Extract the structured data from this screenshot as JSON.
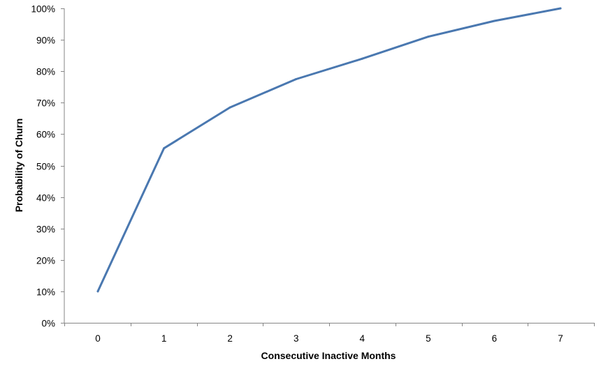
{
  "chart_data": {
    "type": "line",
    "title": "",
    "xlabel": "Consecutive Inactive Months",
    "ylabel": "Probability of Churn",
    "x": [
      0,
      1,
      2,
      3,
      4,
      5,
      6,
      7
    ],
    "x_tick_labels": [
      "0",
      "1",
      "2",
      "3",
      "4",
      "5",
      "6",
      "7"
    ],
    "series": [
      {
        "values": [
          0.1,
          0.555,
          0.685,
          0.775,
          0.84,
          0.91,
          0.96,
          1.0
        ]
      }
    ],
    "ylim": [
      0,
      1
    ],
    "y_ticks": [
      0,
      0.1,
      0.2,
      0.3,
      0.4,
      0.5,
      0.6,
      0.7,
      0.8,
      0.9,
      1.0
    ],
    "y_tick_labels": [
      "0%",
      "10%",
      "20%",
      "30%",
      "40%",
      "50%",
      "60%",
      "70%",
      "80%",
      "90%",
      "100%"
    ],
    "grid": false,
    "legend": "none",
    "line_color": "#4a78b0",
    "axis_color": "#868686"
  }
}
